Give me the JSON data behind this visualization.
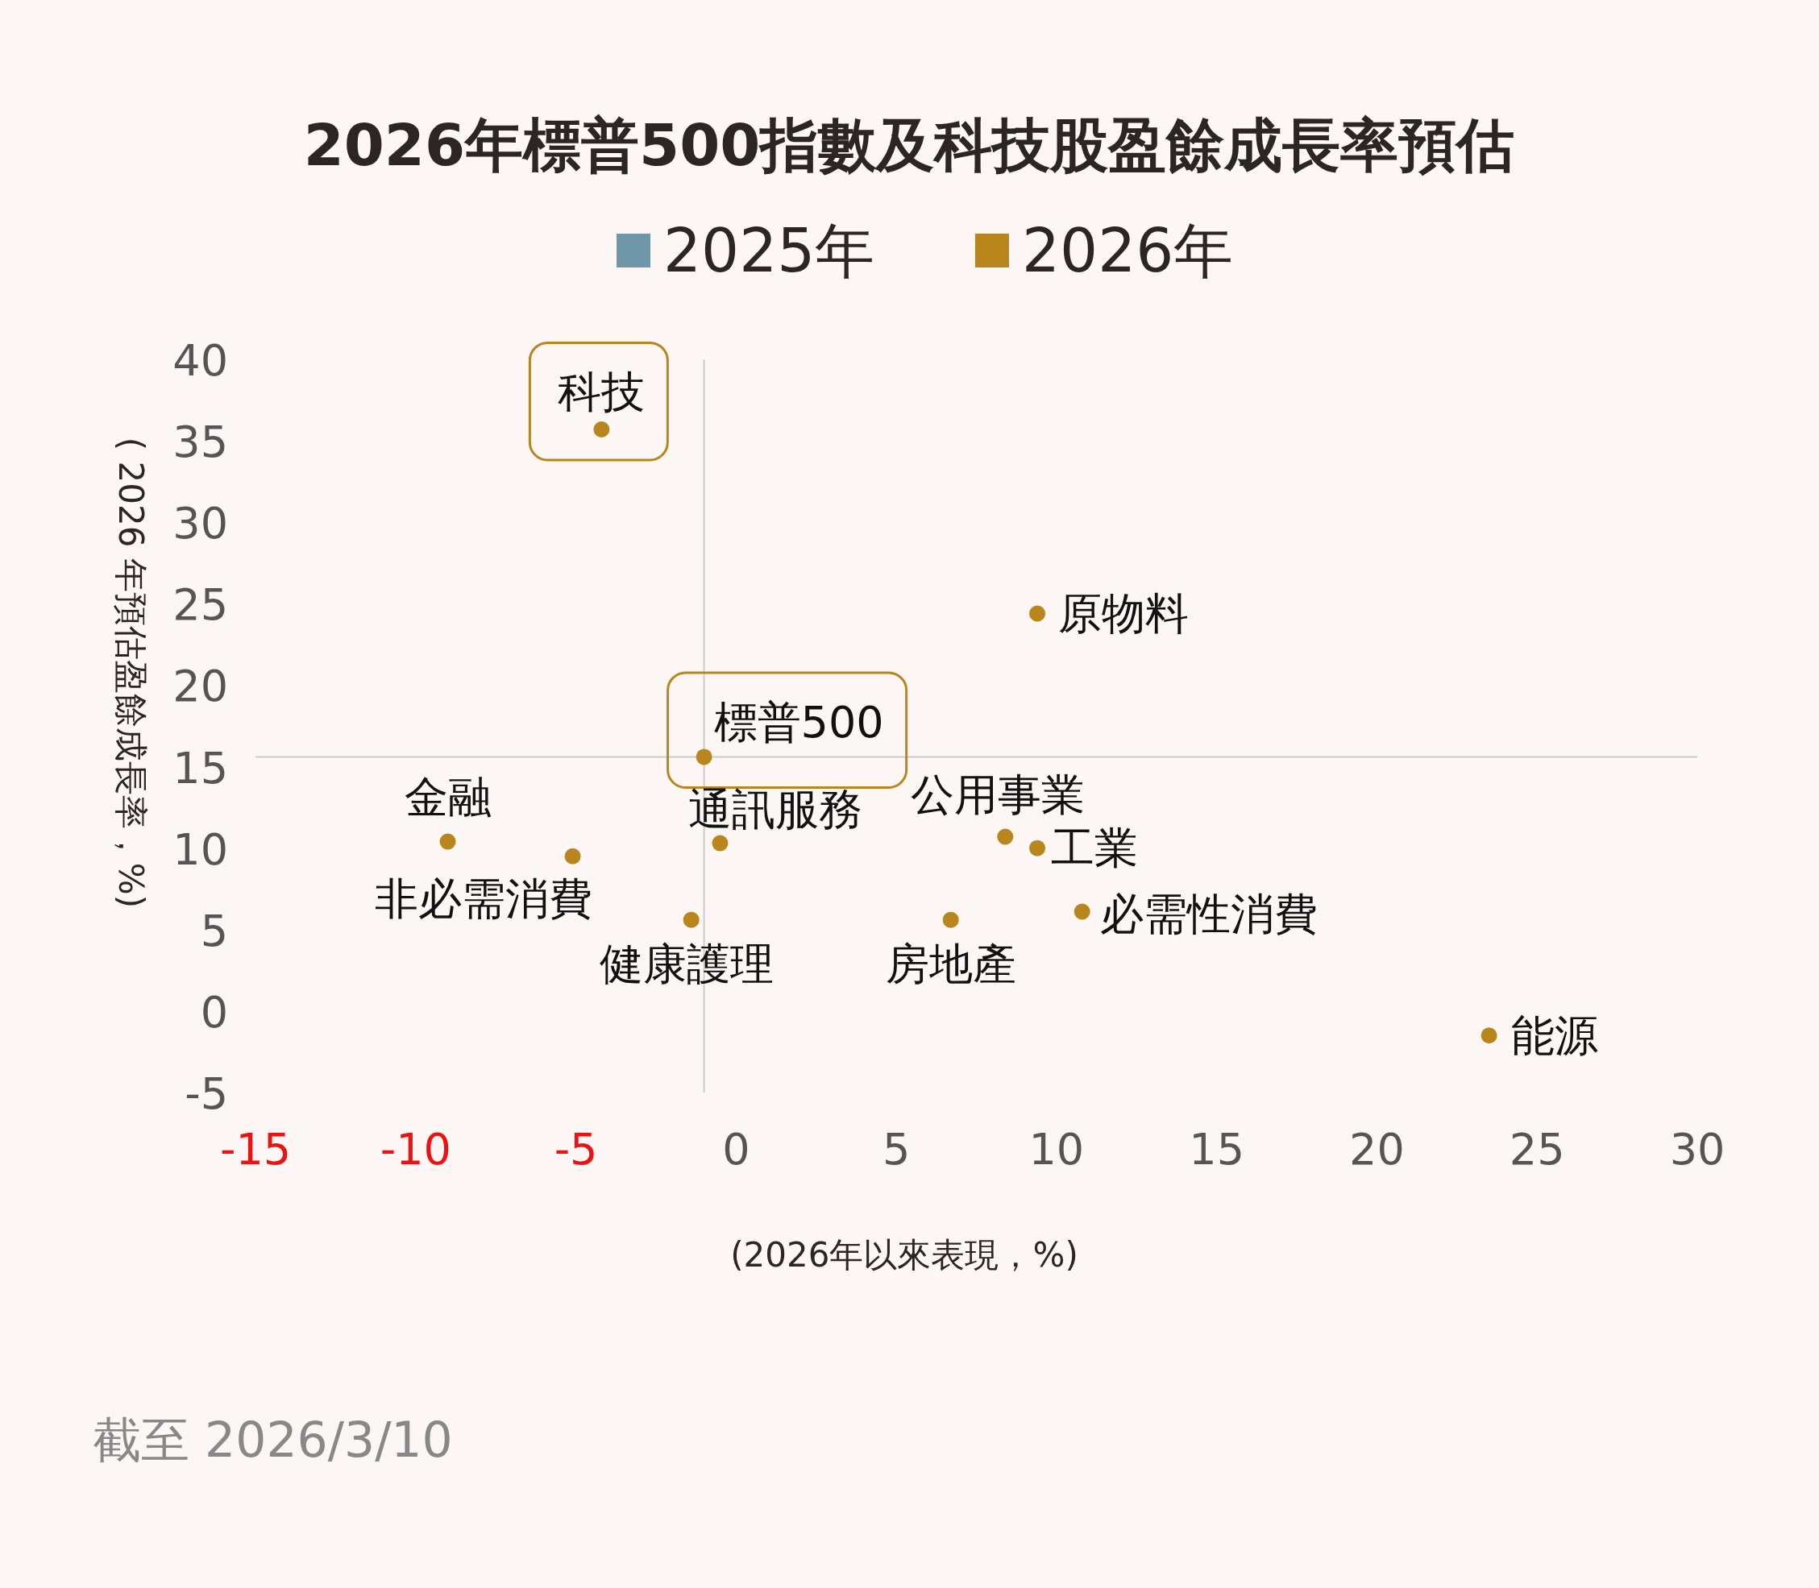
{
  "chart_data": {
    "type": "scatter",
    "title": "2026年標普500指數及科技股盈餘成長率預估",
    "xlabel": "(2026年以來表現，%)",
    "ylabel": "( 2026 年預估盈餘成長率，%)",
    "legend": "top",
    "marker": "circle",
    "grid": false,
    "xlim": [
      -15,
      30
    ],
    "xticks": [
      -15,
      -10,
      -5,
      0,
      5,
      10,
      15,
      20,
      25,
      30
    ],
    "ylim": [
      -5,
      40
    ],
    "yticks": [
      -5,
      0,
      5,
      10,
      15,
      20,
      25,
      30,
      35,
      40
    ],
    "series": [
      {
        "name": "2025年",
        "color": "#7097a8"
      },
      {
        "name": "2026年",
        "color": "#b8861c",
        "x": [
          -4.2,
          9.4,
          -1.0,
          -9.0,
          -5.1,
          -0.5,
          -1.4,
          8.4,
          9.4,
          6.7,
          10.8,
          23.5
        ],
        "values": [
          35.7,
          24.4,
          15.6,
          10.4,
          9.5,
          10.3,
          5.6,
          10.7,
          10.0,
          5.6,
          6.1,
          -1.5
        ]
      }
    ],
    "ref_lines": [
      {
        "axis": "x",
        "value": -1.0,
        "color": "#cccccc"
      },
      {
        "axis": "y",
        "value": 15.6,
        "color": "#cccccc"
      }
    ],
    "annotations": [
      {
        "text": "科技",
        "x": -4.2,
        "y": 35.7
      },
      {
        "text": "原物料",
        "x": 9.4,
        "y": 24.4
      },
      {
        "text": "標普500",
        "x": -1.0,
        "y": 15.6
      },
      {
        "text": "金融",
        "x": -9.0,
        "y": 10.4
      },
      {
        "text": "非必需消費",
        "x": -5.1,
        "y": 9.5
      },
      {
        "text": "通訊服務",
        "x": -0.5,
        "y": 10.3
      },
      {
        "text": "健康護理",
        "x": -1.4,
        "y": 5.6
      },
      {
        "text": "公用事業",
        "x": 8.4,
        "y": 10.7
      },
      {
        "text": "工業",
        "x": 9.4,
        "y": 10.0
      },
      {
        "text": "房地產",
        "x": 6.7,
        "y": 5.6
      },
      {
        "text": "必需性消費",
        "x": 10.8,
        "y": 6.1
      },
      {
        "text": "能源",
        "x": 23.5,
        "y": -1.5
      },
      "截至 2026/3/10"
    ]
  }
}
